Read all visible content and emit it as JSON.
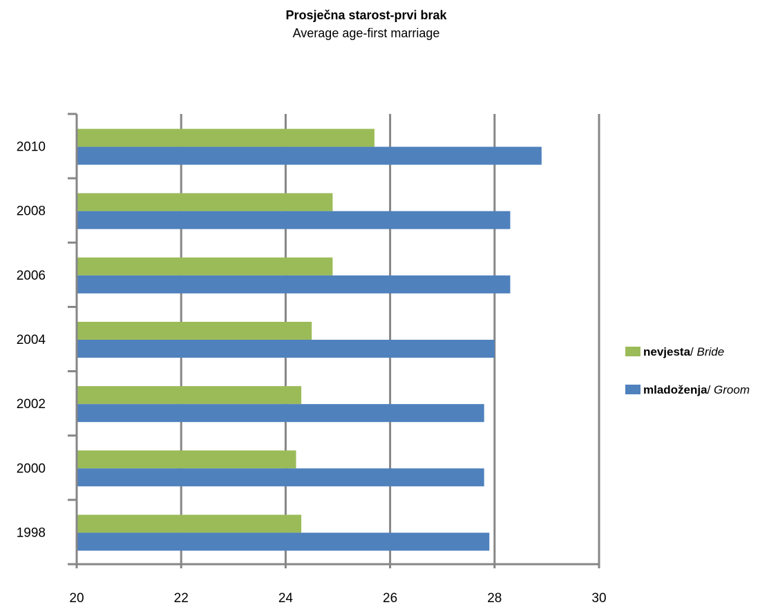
{
  "chart_data": {
    "type": "bar",
    "orientation": "horizontal",
    "title": "Prosječna starost-prvi brak",
    "subtitle": "Average age-first marriage",
    "categories": [
      "1998",
      "2000",
      "2002",
      "2004",
      "2006",
      "2008",
      "2010"
    ],
    "series": [
      {
        "name_bold": "nevjesta",
        "name_sep": "/ ",
        "name_italic": "Bride",
        "color": "#9BBB59",
        "values": [
          24.3,
          24.2,
          24.3,
          24.5,
          24.9,
          24.9,
          25.7
        ]
      },
      {
        "name_bold": "mladoženja",
        "name_sep": "/ ",
        "name_italic": "Groom",
        "color": "#4F81BD",
        "values": [
          27.9,
          27.8,
          27.8,
          28.0,
          28.3,
          28.3,
          28.9
        ]
      }
    ],
    "x_ticks": [
      "20",
      "22",
      "24",
      "26",
      "28",
      "30"
    ],
    "xlim": [
      20,
      30
    ],
    "grid": true,
    "legend_position": "right"
  }
}
